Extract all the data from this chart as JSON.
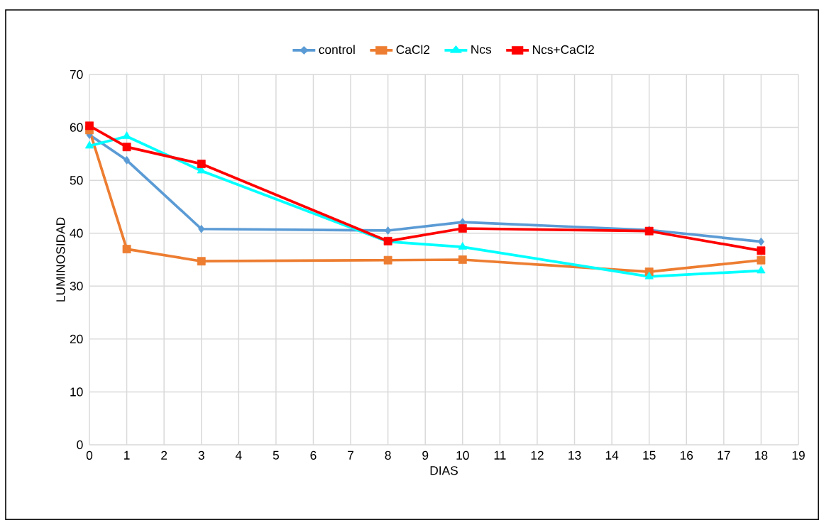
{
  "chart_data": {
    "type": "line",
    "xlabel": "DIAS",
    "ylabel": "LUMINOSIDAD",
    "x": [
      0,
      1,
      3,
      8,
      10,
      15,
      18
    ],
    "series": [
      {
        "name": "control",
        "color": "#5b9bd5",
        "marker": "diamond",
        "values": [
          58.6,
          53.8,
          40.8,
          40.5,
          42.1,
          40.6,
          38.4
        ]
      },
      {
        "name": "CaCl2",
        "color": "#ed7d31",
        "marker": "square",
        "values": [
          59.5,
          37.0,
          34.7,
          34.9,
          35.0,
          32.7,
          34.9
        ]
      },
      {
        "name": "Ncs",
        "color": "#00ffff",
        "marker": "triangle",
        "values": [
          56.5,
          58.3,
          51.8,
          38.4,
          37.4,
          31.8,
          32.9
        ]
      },
      {
        "name": "Ncs+CaCl2",
        "color": "#ff0000",
        "marker": "square",
        "values": [
          60.3,
          56.3,
          53.1,
          38.5,
          40.9,
          40.4,
          36.7
        ]
      }
    ],
    "xlim": [
      0,
      19
    ],
    "ylim": [
      0,
      70
    ],
    "xticks": [
      0,
      1,
      2,
      3,
      4,
      5,
      6,
      7,
      8,
      9,
      10,
      11,
      12,
      13,
      14,
      15,
      16,
      17,
      18,
      19
    ],
    "yticks": [
      0,
      10,
      20,
      30,
      40,
      50,
      60,
      70
    ],
    "grid": true,
    "legend": "top"
  }
}
